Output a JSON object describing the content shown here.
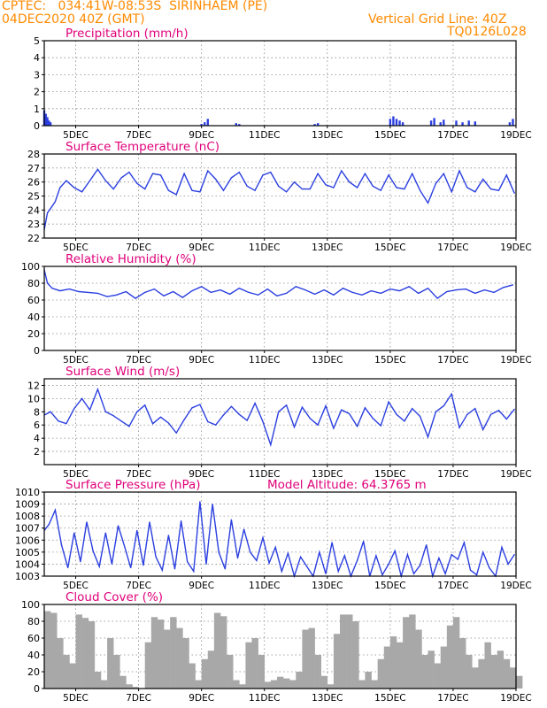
{
  "header": {
    "line1": "CPTEC:   034:41W-08:53S  SIRINHAEM (PE)",
    "line2_left": "04DEC2020 40Z (GMT)",
    "line2_right": "Vertical Grid Line: 40Z",
    "line3_right": "TQ0126L028"
  },
  "x_ticks": [
    "5DEC",
    "7DEC",
    "9DEC",
    "11DEC",
    "13DEC",
    "15DEC",
    "17DEC",
    "19DEC"
  ],
  "x_range_days": [
    4.0,
    19.0
  ],
  "colors": {
    "header": "#ff8a00",
    "title": "#e0007a",
    "line": "#2b3fe0",
    "cloud": "#a8a8a8"
  },
  "chart_data": [
    {
      "type": "bar",
      "title": "Precipitation (mm/h)",
      "ylim": [
        0,
        5
      ],
      "yticks": [
        "0",
        "1",
        "2",
        "3",
        "4",
        "5"
      ],
      "grid": true,
      "x_day": [
        4.0,
        4.05,
        4.1,
        4.15,
        4.2,
        9.0,
        9.1,
        9.2,
        10.1,
        10.2,
        12.6,
        12.7,
        15.0,
        15.1,
        15.2,
        15.3,
        15.4,
        16.3,
        16.4,
        16.6,
        16.7,
        17.1,
        17.3,
        17.5,
        17.7,
        18.8,
        18.9
      ],
      "values": [
        0.9,
        0.7,
        0.5,
        0.3,
        0.2,
        0.1,
        0.2,
        0.4,
        0.15,
        0.1,
        0.1,
        0.15,
        0.4,
        0.55,
        0.4,
        0.3,
        0.2,
        0.3,
        0.45,
        0.2,
        0.35,
        0.3,
        0.2,
        0.3,
        0.25,
        0.2,
        0.4
      ]
    },
    {
      "type": "line",
      "title": "Surface Temperature (nC)",
      "ylim": [
        22,
        28
      ],
      "yticks": [
        "22",
        "23",
        "24",
        "25",
        "26",
        "27",
        "28"
      ],
      "grid": true,
      "x_day": [
        4.0,
        4.1,
        4.2,
        4.35,
        4.5,
        4.7,
        4.95,
        5.2,
        5.45,
        5.7,
        5.95,
        6.2,
        6.45,
        6.7,
        6.95,
        7.2,
        7.45,
        7.7,
        7.95,
        8.2,
        8.45,
        8.7,
        8.95,
        9.2,
        9.45,
        9.7,
        9.95,
        10.2,
        10.45,
        10.7,
        10.95,
        11.2,
        11.45,
        11.7,
        11.95,
        12.2,
        12.45,
        12.7,
        12.95,
        13.2,
        13.45,
        13.7,
        13.95,
        14.2,
        14.45,
        14.7,
        14.95,
        15.2,
        15.45,
        15.7,
        15.95,
        16.2,
        16.45,
        16.7,
        16.95,
        17.2,
        17.45,
        17.7,
        17.95,
        18.2,
        18.45,
        18.7,
        18.95
      ],
      "values": [
        22.6,
        23.8,
        24.1,
        24.6,
        25.6,
        26.1,
        25.6,
        25.3,
        26.1,
        26.9,
        26.1,
        25.5,
        26.3,
        26.7,
        25.9,
        25.5,
        26.6,
        26.5,
        25.4,
        25.1,
        26.6,
        25.4,
        25.3,
        26.8,
        26.2,
        25.4,
        26.3,
        26.7,
        25.7,
        25.4,
        26.5,
        26.7,
        25.7,
        25.3,
        26.0,
        25.5,
        25.5,
        26.6,
        25.8,
        25.6,
        26.8,
        26.0,
        25.6,
        26.6,
        25.7,
        25.4,
        26.5,
        25.6,
        25.5,
        26.6,
        25.4,
        24.5,
        25.9,
        26.6,
        25.3,
        26.8,
        25.6,
        25.3,
        26.2,
        25.5,
        25.4,
        26.5,
        25.2
      ]
    },
    {
      "type": "line",
      "title": "Relative Humidity (%)",
      "ylim": [
        0,
        100
      ],
      "yticks": [
        "0",
        "20",
        "40",
        "60",
        "80",
        "100"
      ],
      "grid": true,
      "x_day": [
        4.0,
        4.1,
        4.25,
        4.5,
        4.8,
        5.1,
        5.4,
        5.7,
        6.0,
        6.3,
        6.6,
        6.9,
        7.2,
        7.5,
        7.8,
        8.1,
        8.4,
        8.7,
        9.0,
        9.3,
        9.6,
        9.9,
        10.2,
        10.5,
        10.8,
        11.1,
        11.4,
        11.7,
        12.0,
        12.3,
        12.6,
        12.9,
        13.2,
        13.5,
        13.8,
        14.1,
        14.4,
        14.7,
        15.0,
        15.3,
        15.6,
        15.9,
        16.2,
        16.5,
        16.8,
        17.1,
        17.4,
        17.7,
        18.0,
        18.3,
        18.6,
        18.9
      ],
      "values": [
        96,
        80,
        74,
        71,
        73,
        70,
        69,
        68,
        64,
        66,
        70,
        62,
        69,
        73,
        65,
        70,
        63,
        71,
        76,
        69,
        72,
        67,
        74,
        69,
        66,
        73,
        65,
        68,
        76,
        72,
        67,
        72,
        66,
        74,
        69,
        66,
        71,
        68,
        73,
        71,
        76,
        68,
        74,
        62,
        70,
        72,
        73,
        68,
        72,
        69,
        75,
        78
      ]
    },
    {
      "type": "line",
      "title": "Surface Wind (m/s)",
      "ylim": [
        0,
        13
      ],
      "yticks": [
        "2",
        "4",
        "6",
        "8",
        "10",
        "12"
      ],
      "grid": true,
      "x_day": [
        4.0,
        4.2,
        4.45,
        4.7,
        4.95,
        5.2,
        5.45,
        5.7,
        5.95,
        6.2,
        6.45,
        6.7,
        6.95,
        7.2,
        7.45,
        7.7,
        7.95,
        8.2,
        8.45,
        8.7,
        8.95,
        9.2,
        9.45,
        9.7,
        9.95,
        10.2,
        10.45,
        10.7,
        10.95,
        11.2,
        11.45,
        11.7,
        11.95,
        12.2,
        12.45,
        12.7,
        12.95,
        13.2,
        13.45,
        13.7,
        13.95,
        14.2,
        14.45,
        14.7,
        14.95,
        15.2,
        15.45,
        15.7,
        15.95,
        16.2,
        16.45,
        16.7,
        16.95,
        17.2,
        17.45,
        17.7,
        17.95,
        18.2,
        18.45,
        18.7,
        18.95
      ],
      "values": [
        7.5,
        8.0,
        6.6,
        6.2,
        8.5,
        10.0,
        8.3,
        11.4,
        8.0,
        7.4,
        6.6,
        5.8,
        8.0,
        9.0,
        6.2,
        7.2,
        6.3,
        4.8,
        6.8,
        8.6,
        9.1,
        6.5,
        6.0,
        7.5,
        8.8,
        7.6,
        6.7,
        9.3,
        6.5,
        3.0,
        8.0,
        9.0,
        5.7,
        8.7,
        7.0,
        6.0,
        8.9,
        5.5,
        8.3,
        7.7,
        5.8,
        8.6,
        7.0,
        5.9,
        9.5,
        7.6,
        6.6,
        8.5,
        7.3,
        4.2,
        8.0,
        8.9,
        10.7,
        5.6,
        7.6,
        8.5,
        5.3,
        7.6,
        8.2,
        6.9,
        8.4
      ]
    },
    {
      "type": "line",
      "title": "Surface Pressure (hPa)",
      "subtitle": "Model Altitude: 64.3765 m",
      "ylim": [
        1003,
        1010
      ],
      "yticks": [
        "1003",
        "1004",
        "1005",
        "1006",
        "1007",
        "1008",
        "1009",
        "1010"
      ],
      "grid": true,
      "x_day": [
        4.0,
        4.15,
        4.35,
        4.55,
        4.75,
        4.95,
        5.15,
        5.35,
        5.55,
        5.75,
        5.95,
        6.15,
        6.35,
        6.55,
        6.75,
        6.95,
        7.15,
        7.35,
        7.55,
        7.75,
        7.95,
        8.15,
        8.35,
        8.55,
        8.75,
        8.95,
        9.15,
        9.35,
        9.55,
        9.75,
        9.95,
        10.15,
        10.35,
        10.55,
        10.75,
        10.95,
        11.15,
        11.35,
        11.55,
        11.75,
        11.95,
        12.15,
        12.35,
        12.55,
        12.75,
        12.95,
        13.15,
        13.35,
        13.55,
        13.75,
        13.95,
        14.15,
        14.35,
        14.55,
        14.75,
        14.95,
        15.15,
        15.35,
        15.55,
        15.75,
        15.95,
        16.15,
        16.35,
        16.55,
        16.75,
        16.95,
        17.15,
        17.35,
        17.55,
        17.75,
        17.95,
        18.15,
        18.35,
        18.55,
        18.75,
        18.95
      ],
      "values": [
        1006.8,
        1007.3,
        1008.5,
        1005.6,
        1003.7,
        1006.6,
        1004.2,
        1007.5,
        1005.1,
        1003.8,
        1006.6,
        1004.0,
        1007.2,
        1005.5,
        1003.7,
        1006.8,
        1003.9,
        1007.5,
        1004.6,
        1003.5,
        1006.4,
        1003.6,
        1007.6,
        1004.2,
        1003.4,
        1009.2,
        1004.0,
        1009.0,
        1005.0,
        1003.6,
        1007.7,
        1004.5,
        1006.9,
        1005.0,
        1004.3,
        1006.2,
        1004.1,
        1005.4,
        1003.4,
        1004.9,
        1003.0,
        1004.6,
        1003.8,
        1003.0,
        1005.0,
        1003.2,
        1005.8,
        1003.4,
        1004.7,
        1003.0,
        1004.3,
        1005.9,
        1003.0,
        1004.7,
        1003.1,
        1004.0,
        1005.1,
        1003.0,
        1004.8,
        1003.2,
        1003.9,
        1005.6,
        1003.0,
        1004.5,
        1003.2,
        1004.8,
        1004.4,
        1005.8,
        1003.5,
        1003.1,
        1005.0,
        1003.7,
        1003.0,
        1005.4,
        1004.0,
        1004.8
      ]
    },
    {
      "type": "area",
      "title": "Cloud Cover (%)",
      "ylim": [
        0,
        100
      ],
      "yticks": [
        "0",
        "20",
        "40",
        "60",
        "80",
        "100"
      ],
      "grid": true,
      "x_day": [
        4.0,
        4.2,
        4.4,
        4.6,
        4.8,
        5.0,
        5.2,
        5.4,
        5.6,
        5.8,
        6.0,
        6.2,
        6.4,
        6.6,
        6.8,
        7.0,
        7.2,
        7.4,
        7.6,
        7.8,
        8.0,
        8.2,
        8.4,
        8.6,
        8.8,
        9.0,
        9.2,
        9.4,
        9.6,
        9.8,
        10.0,
        10.2,
        10.4,
        10.6,
        10.8,
        11.0,
        11.2,
        11.4,
        11.6,
        11.8,
        12.0,
        12.2,
        12.4,
        12.6,
        12.8,
        13.0,
        13.2,
        13.4,
        13.6,
        13.8,
        14.0,
        14.2,
        14.4,
        14.6,
        14.8,
        15.0,
        15.2,
        15.4,
        15.6,
        15.8,
        16.0,
        16.2,
        16.4,
        16.6,
        16.8,
        17.0,
        17.2,
        17.4,
        17.6,
        17.8,
        18.0,
        18.2,
        18.4,
        18.6,
        18.8,
        19.0
      ],
      "values": [
        92,
        90,
        60,
        40,
        30,
        88,
        84,
        80,
        20,
        10,
        60,
        40,
        15,
        5,
        2,
        0,
        55,
        85,
        82,
        70,
        85,
        72,
        60,
        30,
        10,
        35,
        45,
        90,
        86,
        40,
        10,
        5,
        55,
        60,
        40,
        8,
        10,
        14,
        12,
        10,
        20,
        70,
        72,
        40,
        15,
        5,
        65,
        88,
        88,
        80,
        10,
        20,
        10,
        35,
        50,
        62,
        55,
        85,
        88,
        70,
        40,
        45,
        30,
        50,
        75,
        85,
        60,
        40,
        25,
        35,
        55,
        40,
        45,
        35,
        25,
        15
      ]
    }
  ]
}
